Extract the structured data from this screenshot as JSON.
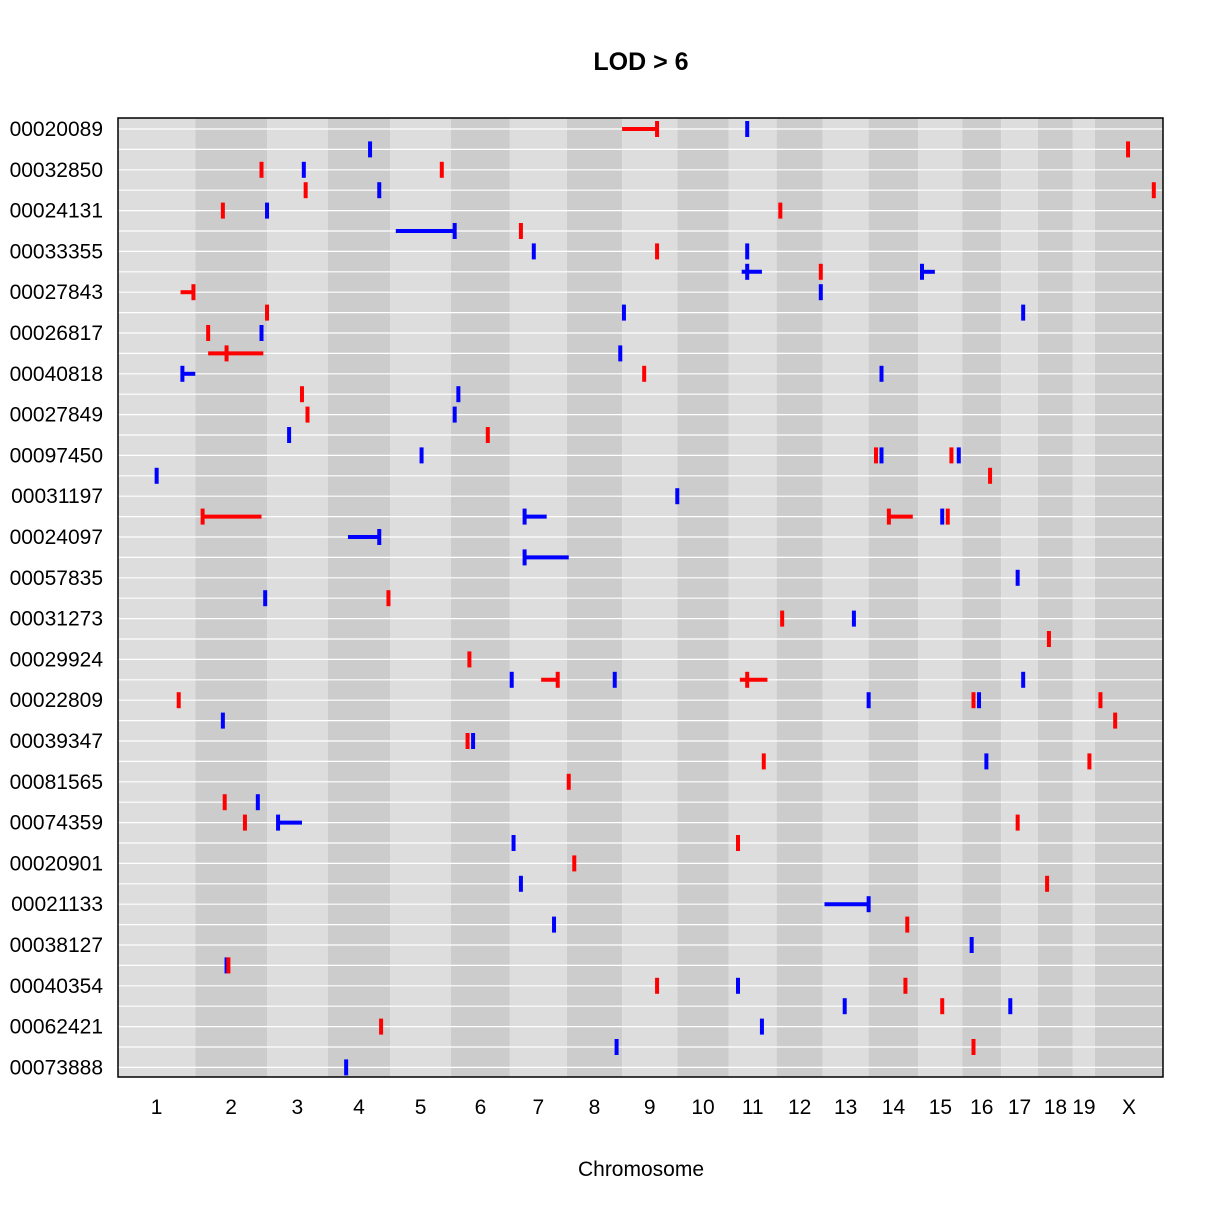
{
  "chart_data": {
    "type": "scatter",
    "title": "LOD > 6",
    "xlabel": "Chromosome",
    "ylabel": "",
    "grid": true,
    "legend": "none",
    "colors": {
      "red": "#ff0000",
      "blue": "#0000ff",
      "band_light": "#dddddd",
      "band_dark": "#cccccc",
      "gridline": "#ffffff"
    },
    "chromosomes": [
      "1",
      "2",
      "3",
      "4",
      "5",
      "6",
      "7",
      "8",
      "9",
      "10",
      "11",
      "12",
      "13",
      "14",
      "15",
      "16",
      "17",
      "18",
      "19",
      "X"
    ],
    "chromosome_bounds": [
      0,
      4.2,
      8.1,
      11.4,
      14.8,
      18.1,
      21.3,
      24.4,
      27.4,
      30.4,
      33.2,
      35.8,
      38.3,
      40.8,
      43.5,
      45.9,
      48.0,
      50.0,
      51.9,
      53.1,
      56.8
    ],
    "xlim": [
      0,
      56.8
    ],
    "row_labels": [
      "00020089",
      "00032850",
      "00024131",
      "00033355",
      "00027843",
      "00026817",
      "00040818",
      "00027849",
      "00097450",
      "00031197",
      "00024097",
      "00057835",
      "00031273",
      "00029924",
      "00022809",
      "00039347",
      "00081565",
      "00074359",
      "00020901",
      "00021133",
      "00038127",
      "00040354",
      "00062421",
      "00073888"
    ],
    "row_count": 47,
    "intervals": [
      {
        "row": 0,
        "color": "red",
        "pos": 29.3,
        "lo": 27.4,
        "hi": 29.3
      },
      {
        "row": 0,
        "color": "blue",
        "pos": 34.2
      },
      {
        "row": 1,
        "color": "blue",
        "pos": 13.7
      },
      {
        "row": 1,
        "color": "red",
        "pos": 54.9
      },
      {
        "row": 2,
        "color": "red",
        "pos": 7.8
      },
      {
        "row": 2,
        "color": "blue",
        "pos": 10.1
      },
      {
        "row": 2,
        "color": "red",
        "pos": 17.6
      },
      {
        "row": 3,
        "color": "red",
        "pos": 10.2
      },
      {
        "row": 3,
        "color": "blue",
        "pos": 14.2
      },
      {
        "row": 3,
        "color": "red",
        "pos": 56.3
      },
      {
        "row": 4,
        "color": "red",
        "pos": 5.7
      },
      {
        "row": 4,
        "color": "blue",
        "pos": 8.1
      },
      {
        "row": 4,
        "color": "red",
        "pos": 36.0
      },
      {
        "row": 5,
        "color": "blue",
        "pos": 18.3,
        "lo": 15.1,
        "hi": 18.3
      },
      {
        "row": 5,
        "color": "red",
        "pos": 21.9
      },
      {
        "row": 6,
        "color": "blue",
        "pos": 22.6
      },
      {
        "row": 6,
        "color": "red",
        "pos": 29.3
      },
      {
        "row": 6,
        "color": "blue",
        "pos": 34.2
      },
      {
        "row": 7,
        "color": "blue",
        "pos": 34.2,
        "lo": 33.9,
        "hi": 35.0
      },
      {
        "row": 7,
        "color": "red",
        "pos": 38.2
      },
      {
        "row": 7,
        "color": "blue",
        "pos": 43.7,
        "lo": 43.7,
        "hi": 44.4
      },
      {
        "row": 8,
        "color": "red",
        "pos": 4.1,
        "lo": 3.4,
        "hi": 4.1
      },
      {
        "row": 8,
        "color": "blue",
        "pos": 38.2
      },
      {
        "row": 9,
        "color": "red",
        "pos": 8.1
      },
      {
        "row": 9,
        "color": "blue",
        "pos": 27.5
      },
      {
        "row": 9,
        "color": "blue",
        "pos": 49.2
      },
      {
        "row": 10,
        "color": "red",
        "pos": 4.9
      },
      {
        "row": 10,
        "color": "blue",
        "pos": 7.8
      },
      {
        "row": 11,
        "color": "red",
        "pos": 5.9,
        "lo": 4.9,
        "hi": 7.9
      },
      {
        "row": 11,
        "color": "blue",
        "pos": 27.3
      },
      {
        "row": 12,
        "color": "blue",
        "pos": 3.5,
        "lo": 3.5,
        "hi": 4.2
      },
      {
        "row": 12,
        "color": "red",
        "pos": 28.6
      },
      {
        "row": 12,
        "color": "blue",
        "pos": 41.5
      },
      {
        "row": 13,
        "color": "red",
        "pos": 10.0
      },
      {
        "row": 13,
        "color": "blue",
        "pos": 18.5
      },
      {
        "row": 14,
        "color": "red",
        "pos": 10.3
      },
      {
        "row": 14,
        "color": "blue",
        "pos": 18.3
      },
      {
        "row": 15,
        "color": "blue",
        "pos": 9.3
      },
      {
        "row": 15,
        "color": "red",
        "pos": 20.1
      },
      {
        "row": 16,
        "color": "blue",
        "pos": 16.5
      },
      {
        "row": 16,
        "color": "red",
        "pos": 41.2
      },
      {
        "row": 16,
        "color": "blue",
        "pos": 41.5
      },
      {
        "row": 16,
        "color": "red",
        "pos": 45.3
      },
      {
        "row": 16,
        "color": "blue",
        "pos": 45.7
      },
      {
        "row": 17,
        "color": "blue",
        "pos": 2.1
      },
      {
        "row": 17,
        "color": "red",
        "pos": 47.4
      },
      {
        "row": 18,
        "color": "blue",
        "pos": 30.4
      },
      {
        "row": 19,
        "color": "red",
        "pos": 4.6,
        "lo": 4.6,
        "hi": 7.8
      },
      {
        "row": 19,
        "color": "blue",
        "pos": 22.1,
        "lo": 22.1,
        "hi": 23.3
      },
      {
        "row": 19,
        "color": "red",
        "pos": 41.9,
        "lo": 41.9,
        "hi": 43.2
      },
      {
        "row": 19,
        "color": "blue",
        "pos": 44.8
      },
      {
        "row": 19,
        "color": "red",
        "pos": 45.1
      },
      {
        "row": 20,
        "color": "blue",
        "pos": 14.2,
        "lo": 12.5,
        "hi": 14.2
      },
      {
        "row": 21,
        "color": "blue",
        "pos": 22.1,
        "lo": 22.1,
        "hi": 24.5
      },
      {
        "row": 22,
        "color": "blue",
        "pos": 48.9
      },
      {
        "row": 23,
        "color": "blue",
        "pos": 8.0
      },
      {
        "row": 23,
        "color": "red",
        "pos": 14.7
      },
      {
        "row": 24,
        "color": "red",
        "pos": 36.1
      },
      {
        "row": 24,
        "color": "blue",
        "pos": 40.0
      },
      {
        "row": 25,
        "color": "red",
        "pos": 50.6
      },
      {
        "row": 26,
        "color": "red",
        "pos": 19.1
      },
      {
        "row": 27,
        "color": "blue",
        "pos": 21.4
      },
      {
        "row": 27,
        "color": "red",
        "pos": 23.9,
        "lo": 23.0,
        "hi": 23.9
      },
      {
        "row": 27,
        "color": "blue",
        "pos": 27.0
      },
      {
        "row": 27,
        "color": "red",
        "pos": 34.2,
        "lo": 33.8,
        "hi": 35.3
      },
      {
        "row": 27,
        "color": "blue",
        "pos": 49.2
      },
      {
        "row": 28,
        "color": "red",
        "pos": 3.3
      },
      {
        "row": 28,
        "color": "blue",
        "pos": 40.8
      },
      {
        "row": 28,
        "color": "red",
        "pos": 46.5
      },
      {
        "row": 28,
        "color": "blue",
        "pos": 46.8
      },
      {
        "row": 28,
        "color": "red",
        "pos": 53.4
      },
      {
        "row": 29,
        "color": "blue",
        "pos": 5.7
      },
      {
        "row": 29,
        "color": "red",
        "pos": 54.2
      },
      {
        "row": 30,
        "color": "red",
        "pos": 19.0
      },
      {
        "row": 30,
        "color": "blue",
        "pos": 19.3
      },
      {
        "row": 31,
        "color": "red",
        "pos": 35.1
      },
      {
        "row": 31,
        "color": "blue",
        "pos": 47.2
      },
      {
        "row": 31,
        "color": "red",
        "pos": 52.8
      },
      {
        "row": 32,
        "color": "red",
        "pos": 24.5
      },
      {
        "row": 33,
        "color": "red",
        "pos": 5.8
      },
      {
        "row": 33,
        "color": "blue",
        "pos": 7.6
      },
      {
        "row": 34,
        "color": "red",
        "pos": 6.9
      },
      {
        "row": 34,
        "color": "blue",
        "pos": 8.7,
        "lo": 8.7,
        "hi": 10.0
      },
      {
        "row": 34,
        "color": "red",
        "pos": 48.9
      },
      {
        "row": 35,
        "color": "blue",
        "pos": 21.5
      },
      {
        "row": 35,
        "color": "red",
        "pos": 33.7
      },
      {
        "row": 36,
        "color": "red",
        "pos": 24.8
      },
      {
        "row": 37,
        "color": "blue",
        "pos": 21.9
      },
      {
        "row": 37,
        "color": "red",
        "pos": 50.5
      },
      {
        "row": 38,
        "color": "blue",
        "pos": 40.8,
        "lo": 38.4,
        "hi": 40.8
      },
      {
        "row": 39,
        "color": "blue",
        "pos": 23.7
      },
      {
        "row": 39,
        "color": "red",
        "pos": 42.9
      },
      {
        "row": 40,
        "color": "blue",
        "pos": 46.4
      },
      {
        "row": 41,
        "color": "blue",
        "pos": 5.9
      },
      {
        "row": 41,
        "color": "red",
        "pos": 6.0
      },
      {
        "row": 42,
        "color": "red",
        "pos": 29.3
      },
      {
        "row": 42,
        "color": "blue",
        "pos": 33.7
      },
      {
        "row": 42,
        "color": "red",
        "pos": 42.8
      },
      {
        "row": 43,
        "color": "blue",
        "pos": 39.5
      },
      {
        "row": 43,
        "color": "red",
        "pos": 44.8
      },
      {
        "row": 43,
        "color": "blue",
        "pos": 48.5
      },
      {
        "row": 44,
        "color": "red",
        "pos": 14.3
      },
      {
        "row": 44,
        "color": "blue",
        "pos": 35.0
      },
      {
        "row": 45,
        "color": "blue",
        "pos": 27.1
      },
      {
        "row": 45,
        "color": "red",
        "pos": 46.5
      },
      {
        "row": 46,
        "color": "blue",
        "pos": 12.4
      }
    ]
  }
}
